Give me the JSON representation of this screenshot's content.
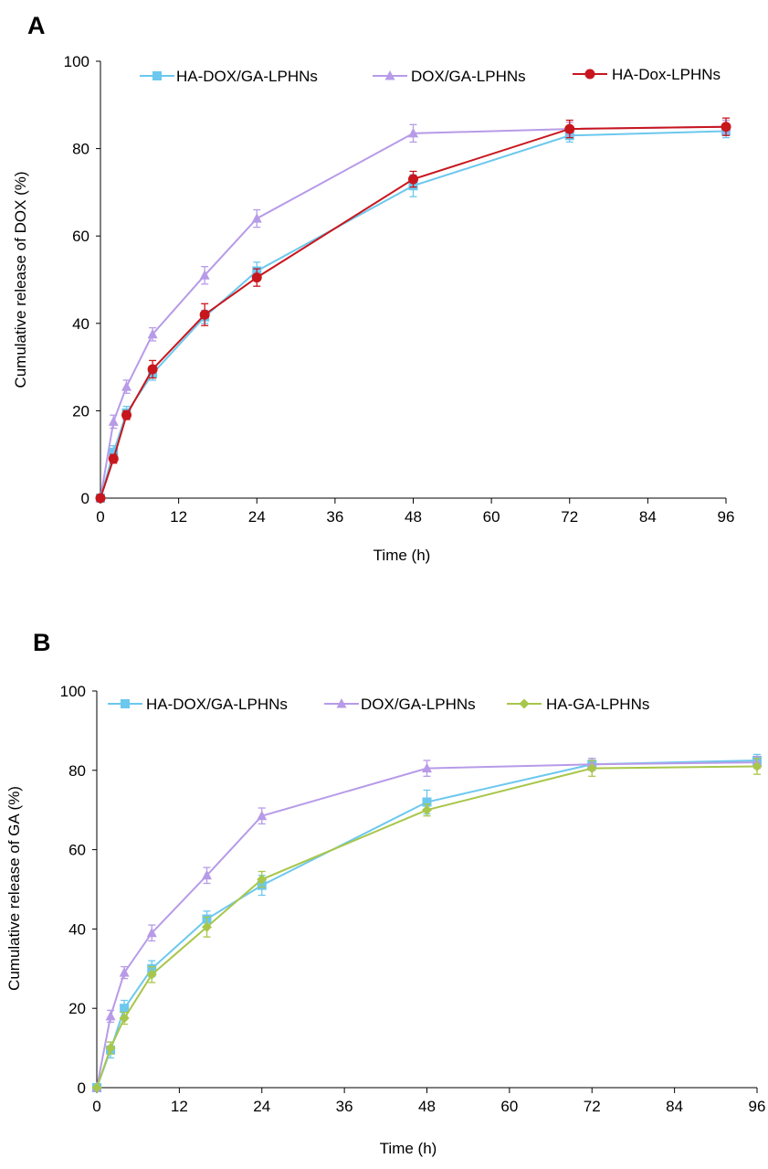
{
  "chart_data": [
    {
      "panel": "A",
      "type": "line",
      "xlabel": "Time (h)",
      "ylabel": "Cumulative release of DOX (%)",
      "xlim": [
        0,
        96
      ],
      "ylim": [
        0,
        100
      ],
      "xticks": [
        "0",
        "12",
        "24",
        "36",
        "48",
        "60",
        "72",
        "84",
        "96"
      ],
      "yticks": [
        "0",
        "20",
        "40",
        "60",
        "80",
        "100"
      ],
      "grid": false,
      "legend_position": "top",
      "x": [
        0,
        2,
        4,
        8,
        16,
        24,
        48,
        72,
        96
      ],
      "series": [
        {
          "name": "HA-DOX/GA-LPHNs",
          "marker": "square",
          "color": "#6CC8EE",
          "values": [
            0,
            10.5,
            19.5,
            28.5,
            41.5,
            52,
            71.5,
            83,
            84
          ],
          "errors": [
            0,
            1.5,
            1.5,
            1.5,
            1.5,
            2,
            2.5,
            1.5,
            1.5
          ]
        },
        {
          "name": "DOX/GA-LPHNs",
          "marker": "triangle",
          "color": "#B79BE8",
          "values": [
            0,
            17.5,
            25.5,
            37.5,
            51,
            64,
            83.5,
            84.5,
            85
          ],
          "errors": [
            0,
            1.5,
            1.5,
            1.5,
            2,
            2,
            2,
            1.5,
            1.5
          ]
        },
        {
          "name": "HA-Dox-LPHNs",
          "marker": "circle",
          "color": "#C8161D",
          "values": [
            0,
            9,
            19,
            29.5,
            42,
            50.5,
            73,
            84.5,
            85
          ],
          "errors": [
            0,
            1,
            1,
            2,
            2.5,
            2,
            1.8,
            2,
            2
          ]
        }
      ]
    },
    {
      "panel": "B",
      "type": "line",
      "xlabel": "Time (h)",
      "ylabel": "Cumulative release of GA (%)",
      "xlim": [
        0,
        96
      ],
      "ylim": [
        0,
        100
      ],
      "xticks": [
        "0",
        "12",
        "24",
        "36",
        "48",
        "60",
        "72",
        "84",
        "96"
      ],
      "yticks": [
        "0",
        "20",
        "40",
        "60",
        "80",
        "100"
      ],
      "grid": false,
      "legend_position": "top",
      "x": [
        0,
        2,
        4,
        8,
        16,
        24,
        48,
        72,
        96
      ],
      "series": [
        {
          "name": "HA-DOX/GA-LPHNs",
          "marker": "square",
          "color": "#6CC8EE",
          "values": [
            0,
            9.5,
            20,
            30,
            42.5,
            51,
            72,
            81.5,
            82.5
          ],
          "errors": [
            0,
            2,
            2,
            2,
            2,
            2.5,
            3,
            1.5,
            1.5
          ]
        },
        {
          "name": "DOX/GA-LPHNs",
          "marker": "triangle",
          "color": "#B79BE8",
          "values": [
            0,
            18,
            29,
            39,
            53.5,
            68.5,
            80.5,
            81.5,
            82
          ],
          "errors": [
            0,
            1.5,
            1.5,
            2,
            2,
            2,
            2,
            1.5,
            1.5
          ]
        },
        {
          "name": "HA-GA-LPHNs",
          "marker": "diamond",
          "color": "#A8C64A",
          "values": [
            0,
            10,
            17.5,
            28.5,
            40.5,
            52.5,
            70,
            80.5,
            81
          ],
          "errors": [
            0,
            1.5,
            1.5,
            2,
            2.5,
            2,
            1.5,
            2,
            2
          ]
        }
      ]
    }
  ]
}
